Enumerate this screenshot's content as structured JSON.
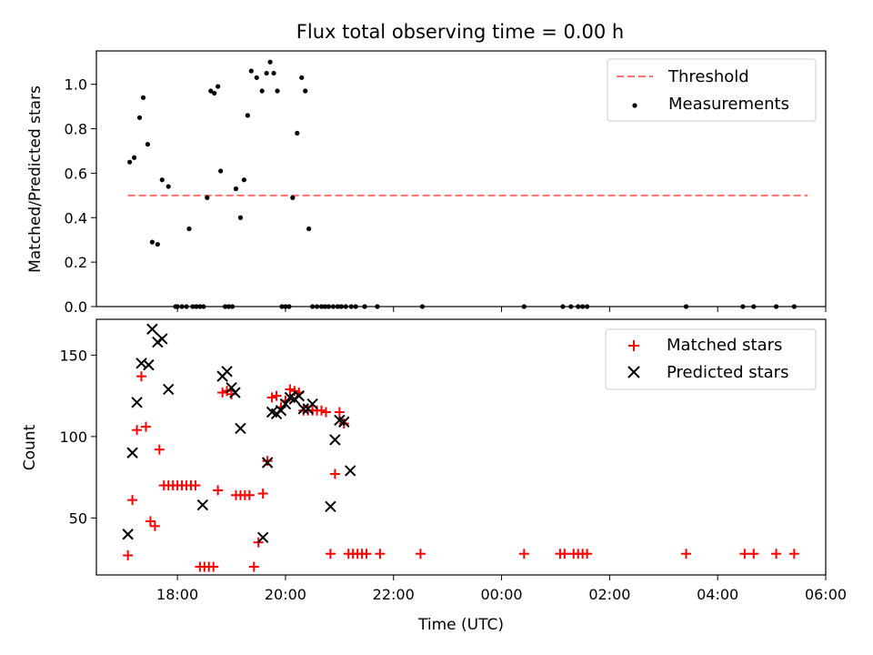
{
  "chart_data": [
    {
      "type": "scatter",
      "title": "Flux total observing time = 0.00 h",
      "xlabel": "",
      "ylabel": "Matched/Predicted stars",
      "xlim": [
        "16:30",
        "06:00"
      ],
      "ylim": [
        0,
        1.15
      ],
      "y_ticks": [
        "0.0",
        "0.2",
        "0.4",
        "0.6",
        "0.8",
        "1.0"
      ],
      "grid": false,
      "legend_position": "top-right",
      "threshold": {
        "name": "Threshold",
        "value": 0.5,
        "x_range": [
          "17:05",
          "05:40"
        ],
        "color": "#ff7070",
        "style": "dashed"
      },
      "series": [
        {
          "name": "Measurements",
          "marker": "dot",
          "color": "#000000",
          "x": [
            "17:07",
            "17:12",
            "17:18",
            "17:22",
            "17:27",
            "17:32",
            "17:38",
            "17:43",
            "17:50",
            "17:58",
            "18:00",
            "18:05",
            "18:10",
            "18:13",
            "18:17",
            "18:21",
            "18:25",
            "18:29",
            "18:33",
            "18:37",
            "18:41",
            "18:45",
            "18:48",
            "18:53",
            "18:57",
            "19:01",
            "19:05",
            "19:10",
            "19:14",
            "19:18",
            "19:22",
            "19:28",
            "19:34",
            "19:39",
            "19:43",
            "19:47",
            "19:51",
            "19:56",
            "20:00",
            "20:04",
            "20:08",
            "20:13",
            "20:18",
            "20:22",
            "20:26",
            "20:30",
            "20:35",
            "20:40",
            "20:44",
            "20:48",
            "20:53",
            "20:58",
            "21:02",
            "21:07",
            "21:13",
            "21:18",
            "21:28",
            "21:42",
            "22:32",
            "00:25",
            "01:08",
            "01:17",
            "01:25",
            "01:30",
            "01:35",
            "03:25",
            "04:28",
            "04:40",
            "05:05",
            "05:25"
          ],
          "y": [
            0.65,
            0.67,
            0.85,
            0.94,
            0.73,
            0.29,
            0.28,
            0.57,
            0.54,
            0.0,
            0.0,
            0.0,
            0.0,
            0.35,
            0.0,
            0.0,
            0.0,
            0.0,
            0.49,
            0.97,
            0.96,
            0.99,
            0.61,
            0.0,
            0.0,
            0.0,
            0.53,
            0.4,
            0.57,
            0.86,
            1.06,
            1.03,
            0.97,
            1.05,
            1.1,
            1.05,
            0.97,
            0.0,
            0.0,
            0.0,
            0.49,
            0.78,
            1.03,
            0.97,
            0.35,
            0.0,
            0.0,
            0.0,
            0.0,
            0.0,
            0.0,
            0.0,
            0.0,
            0.0,
            0.0,
            0.0,
            0.0,
            0.0,
            0.0,
            0.0,
            0.0,
            0.0,
            0.0,
            0.0,
            0.0,
            0.0,
            0.0,
            0.0,
            0.0,
            0.0
          ]
        }
      ]
    },
    {
      "type": "scatter",
      "title": "",
      "xlabel": "Time (UTC)",
      "ylabel": "Count",
      "xlim": [
        "16:30",
        "06:00"
      ],
      "ylim": [
        15,
        172
      ],
      "y_ticks": [
        "50",
        "100",
        "150"
      ],
      "x_ticks": [
        "18:00",
        "20:00",
        "22:00",
        "00:00",
        "02:00",
        "04:00",
        "06:00"
      ],
      "grid": false,
      "legend_position": "top-right",
      "series": [
        {
          "name": "Matched stars",
          "marker": "plus",
          "color": "#ff0000",
          "x": [
            "17:05",
            "17:10",
            "17:15",
            "17:20",
            "17:25",
            "17:30",
            "17:35",
            "17:40",
            "17:45",
            "17:50",
            "17:55",
            "18:00",
            "18:05",
            "18:10",
            "18:15",
            "18:20",
            "18:25",
            "18:30",
            "18:35",
            "18:40",
            "18:45",
            "18:50",
            "18:55",
            "19:00",
            "19:05",
            "19:10",
            "19:15",
            "19:20",
            "19:25",
            "19:30",
            "19:35",
            "19:40",
            "19:45",
            "19:50",
            "19:55",
            "20:00",
            "20:05",
            "20:10",
            "20:15",
            "20:20",
            "20:25",
            "20:30",
            "20:35",
            "20:40",
            "20:45",
            "20:50",
            "20:55",
            "21:00",
            "21:05",
            "21:10",
            "21:15",
            "21:20",
            "21:25",
            "21:30",
            "21:45",
            "22:30",
            "00:25",
            "01:05",
            "01:10",
            "01:20",
            "01:25",
            "01:30",
            "01:35",
            "03:25",
            "04:30",
            "04:40",
            "05:05",
            "05:25"
          ],
          "y": [
            27,
            61,
            104,
            137,
            106,
            48,
            45,
            92,
            70,
            70,
            70,
            70,
            70,
            70,
            70,
            70,
            20,
            20,
            20,
            20,
            67,
            127,
            128,
            126,
            64,
            64,
            64,
            64,
            20,
            35,
            65,
            85,
            124,
            125,
            118,
            122,
            129,
            128,
            127,
            116,
            116,
            116,
            116,
            116,
            115,
            28,
            77,
            115,
            108,
            28,
            28,
            28,
            28,
            28,
            28,
            28,
            28,
            28,
            28,
            28,
            28,
            28,
            28,
            28,
            28,
            28,
            28,
            28
          ]
        },
        {
          "name": "Predicted stars",
          "marker": "x",
          "color": "#000000",
          "x": [
            "17:05",
            "17:10",
            "17:15",
            "17:20",
            "17:28",
            "17:32",
            "17:38",
            "17:43",
            "17:50",
            "18:28",
            "18:50",
            "18:55",
            "19:00",
            "19:04",
            "19:10",
            "19:35",
            "19:40",
            "19:45",
            "19:50",
            "19:55",
            "20:00",
            "20:05",
            "20:10",
            "20:15",
            "20:20",
            "20:25",
            "20:30",
            "20:50",
            "20:55",
            "21:00",
            "21:05",
            "21:12"
          ],
          "y": [
            40,
            90,
            121,
            145,
            144,
            166,
            158,
            160,
            129,
            58,
            137,
            140,
            130,
            127,
            105,
            38,
            84,
            115,
            114,
            116,
            120,
            124,
            123,
            125,
            117,
            117,
            120,
            57,
            98,
            110,
            109,
            79
          ]
        }
      ]
    }
  ]
}
